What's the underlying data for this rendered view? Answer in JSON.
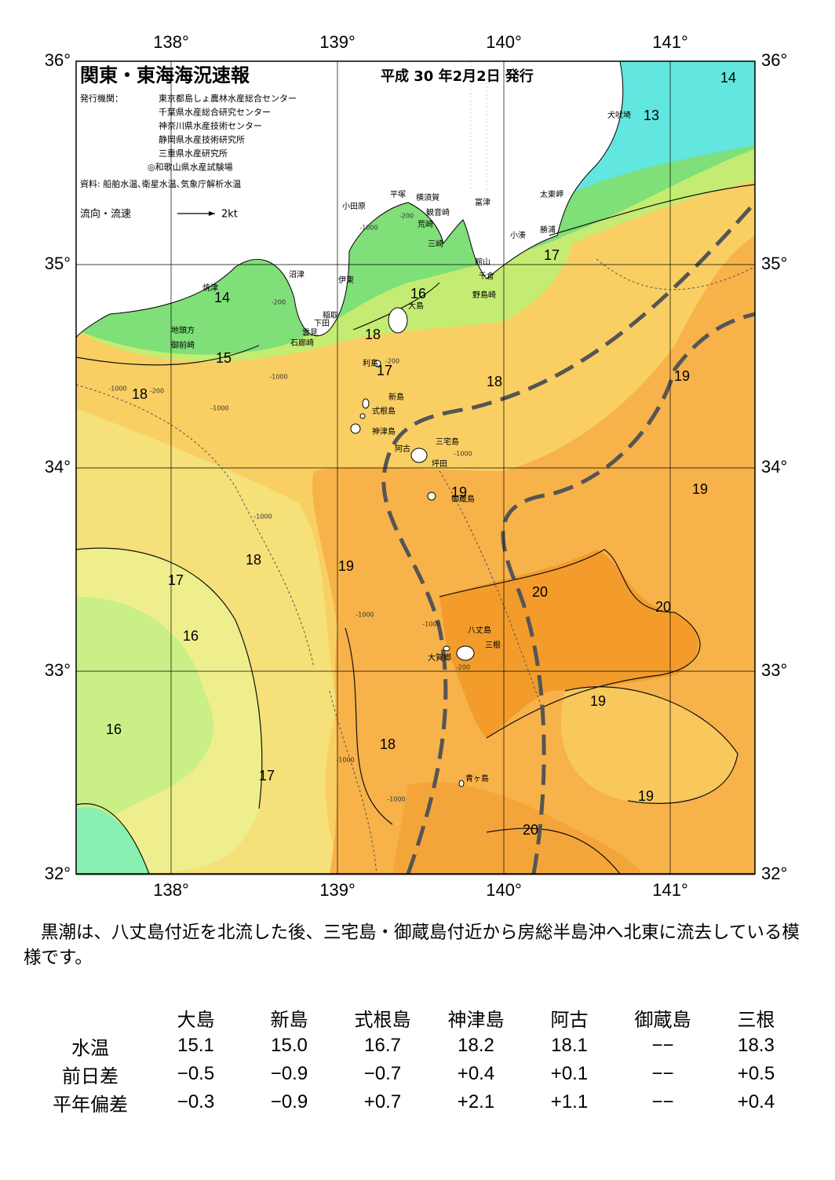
{
  "map": {
    "title": "関東・東海海況速報",
    "issue_date": "平成 30 年2月2日 発行",
    "issuer_label": "発行機関：",
    "issuers": [
      "東京都島しょ農林水産総合センター",
      "千葉県水産総合研究センター",
      "神奈川県水産技術センター",
      "静岡県水産技術研究所",
      "三重県水産研究所",
      "◎和歌山県水産試験場"
    ],
    "source": "資料: 船舶水温､衛星水温､気象庁解析水温",
    "legend": {
      "label": "流向・流速",
      "scale": "2kt"
    },
    "lon_ticks": [
      {
        "value": 138,
        "label": "138°"
      },
      {
        "value": 139,
        "label": "139°"
      },
      {
        "value": 140,
        "label": "140°"
      },
      {
        "value": 141,
        "label": "141°"
      }
    ],
    "lat_ticks": [
      {
        "value": 36,
        "label": "36°"
      },
      {
        "value": 35,
        "label": "35°"
      },
      {
        "value": 34,
        "label": "34°"
      },
      {
        "value": 33,
        "label": "33°"
      },
      {
        "value": 32,
        "label": "32°"
      }
    ],
    "isotherm_labels": [
      14,
      13,
      17,
      16,
      14,
      15,
      18,
      17,
      18,
      19,
      18,
      19,
      19,
      18,
      19,
      17,
      20,
      20,
      16,
      19,
      16,
      18,
      17,
      19,
      20
    ],
    "depth_labels": [
      -200,
      -1000,
      -200,
      -1000,
      -200,
      -1000,
      -1000,
      -200,
      -1000,
      -1000,
      -1000,
      -200,
      -1000,
      -1000,
      -1000
    ],
    "places": [
      "犬吠埼",
      "太東岬",
      "勝浦",
      "小湊",
      "富津",
      "横須賀",
      "平塚",
      "小田原",
      "観音崎",
      "荒崎",
      "三崎",
      "館山",
      "千倉",
      "野島崎",
      "大島",
      "沼津",
      "伊東",
      "稲取",
      "下田",
      "雲見",
      "石廊崎",
      "焼津",
      "地頭方",
      "御前崎",
      "利島",
      "新島",
      "式根島",
      "神津島",
      "三宅島",
      "阿古",
      "坪田",
      "御蔵島",
      "八丈島",
      "三根",
      "大賀郷",
      "青ヶ島"
    ]
  },
  "comment": "黒潮は、八丈島付近を北流した後、三宅島・御蔵島付近から房総半島沖へ北東に流去している模様です。",
  "table": {
    "columns": [
      "大島",
      "新島",
      "式根島",
      "神津島",
      "阿古",
      "御蔵島",
      "三根"
    ],
    "rows": [
      {
        "label": "水温",
        "values": [
          "15.1",
          "15.0",
          "16.7",
          "18.2",
          "18.1",
          "−−",
          "18.3"
        ]
      },
      {
        "label": "前日差",
        "values": [
          "−0.5",
          "−0.9",
          "−0.7",
          "+0.4",
          "+0.1",
          "−−",
          "+0.5"
        ]
      },
      {
        "label": "平年偏差",
        "values": [
          "−0.3",
          "−0.9",
          "+0.7",
          "+2.1",
          "+1.1",
          "−−",
          "+0.4"
        ]
      }
    ]
  }
}
